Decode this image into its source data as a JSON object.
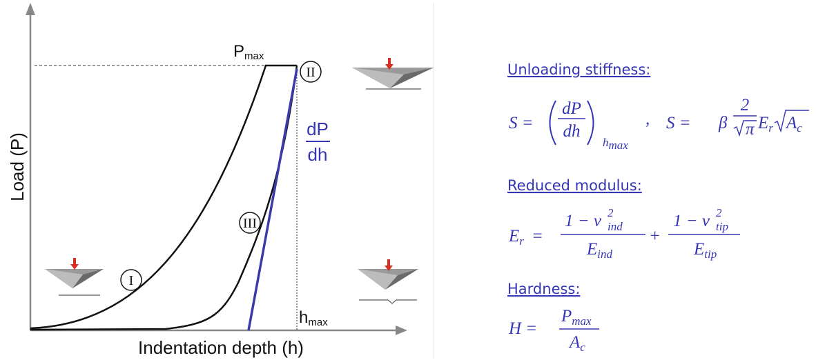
{
  "axes": {
    "y_label": "Load (P)",
    "x_label": "Indentation depth (h)"
  },
  "annotations": {
    "p_max": {
      "base": "P",
      "sub": "max"
    },
    "h_max": {
      "base": "h",
      "sub": "max"
    },
    "slope": {
      "numerator": "dP",
      "denominator": "dh"
    }
  },
  "stages": [
    "I",
    "II",
    "III"
  ],
  "formulas": {
    "stiffness": {
      "heading": "Unloading stiffness:",
      "lhs": "S =",
      "num": "dP",
      "den": "dh",
      "sub": "h",
      "subsub": "max",
      "comma": ",",
      "lhs2": "S =",
      "beta": "β",
      "num2": "2",
      "den2": "π",
      "e": "E",
      "e_sub": "r",
      "a": "A",
      "a_sub": "c"
    },
    "modulus": {
      "heading": "Reduced modulus:",
      "lhs": "E",
      "lhs_sub": "r",
      "eq": "=",
      "num1": "1 − ν",
      "num1_sup": "2",
      "num1_sub": "ind",
      "den1": "E",
      "den1_sub": "ind",
      "plus": "+",
      "num2": "1 − ν",
      "num2_sup": "2",
      "num2_sub": "tip",
      "den2": "E",
      "den2_sub": "tip"
    },
    "hardness": {
      "heading": "Hardness:",
      "lhs": "H =",
      "num": "P",
      "num_sub": "max",
      "den": "A",
      "den_sub": "c"
    }
  }
}
